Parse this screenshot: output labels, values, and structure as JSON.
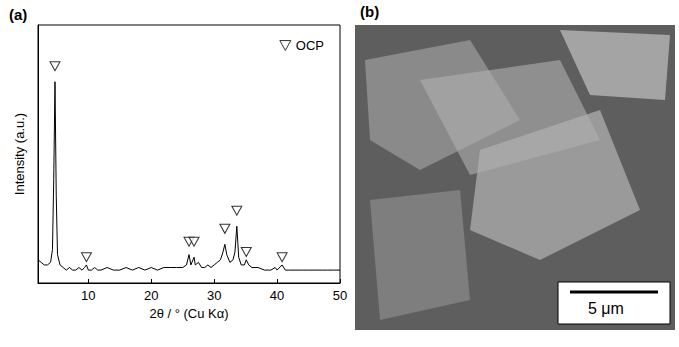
{
  "chart_data": {
    "type": "line",
    "title": "(a)",
    "x_label": "2θ / ° (Cu Kα)",
    "y_label": "Intensity (a.u.)",
    "xlim": [
      2,
      50
    ],
    "xticks": [
      10,
      20,
      30,
      40,
      50
    ],
    "ylim": [
      0,
      100
    ],
    "yticks": [],
    "tick_labels": "x",
    "grid": false,
    "legend": "upper right",
    "series": [
      {
        "type": "line",
        "color": "#000000",
        "line_style": "solid",
        "x": [
          2,
          2.5,
          3,
          3.5,
          4,
          4.3,
          4.5,
          4.7,
          4.9,
          5.1,
          5.5,
          6,
          6.5,
          7,
          7.5,
          8,
          8.5,
          9,
          9.4,
          9.7,
          10,
          10.5,
          11,
          11.5,
          12,
          13,
          14,
          15,
          16,
          17,
          18,
          19,
          20,
          21,
          22,
          23,
          24,
          25,
          25.6,
          26.0,
          26.3,
          26.8,
          27,
          27.5,
          28,
          28.5,
          29,
          29.5,
          30,
          30.5,
          31,
          31.4,
          31.7,
          32,
          32.5,
          33,
          33.3,
          33.6,
          33.9,
          34.3,
          34.8,
          35.1,
          35.5,
          36,
          37,
          38,
          39,
          39.7,
          40,
          40.8,
          41.3,
          42,
          43,
          44,
          45,
          46,
          47,
          48,
          49,
          50
        ],
        "values": [
          9,
          8,
          7,
          7,
          8,
          13,
          40,
          78,
          34,
          11,
          7,
          6,
          5,
          6,
          5,
          5,
          6,
          5,
          6,
          7,
          5,
          5,
          6,
          5,
          5,
          6,
          5,
          5,
          6,
          5,
          6,
          5,
          6,
          5,
          6,
          6,
          6,
          6,
          7,
          11,
          7,
          10,
          7,
          8,
          6,
          6,
          7,
          6,
          7,
          8,
          9,
          12,
          15,
          11,
          8,
          9,
          12,
          22,
          10,
          7,
          7,
          9,
          7,
          6,
          6,
          5,
          5,
          6,
          5,
          7,
          5,
          5,
          5,
          5,
          5,
          5,
          5,
          5,
          5,
          5
        ]
      },
      {
        "type": "scatter",
        "name": "OCP",
        "color": "#000000",
        "marker": "triangle-down",
        "x": [
          4.7,
          9.7,
          26.0,
          26.8,
          31.7,
          33.6,
          35.1,
          40.8
        ],
        "values": [
          84,
          10,
          16,
          16,
          21,
          28,
          12,
          10
        ]
      }
    ]
  },
  "image_panel": {
    "label": "(b)",
    "scale_bar": "5 μm"
  }
}
